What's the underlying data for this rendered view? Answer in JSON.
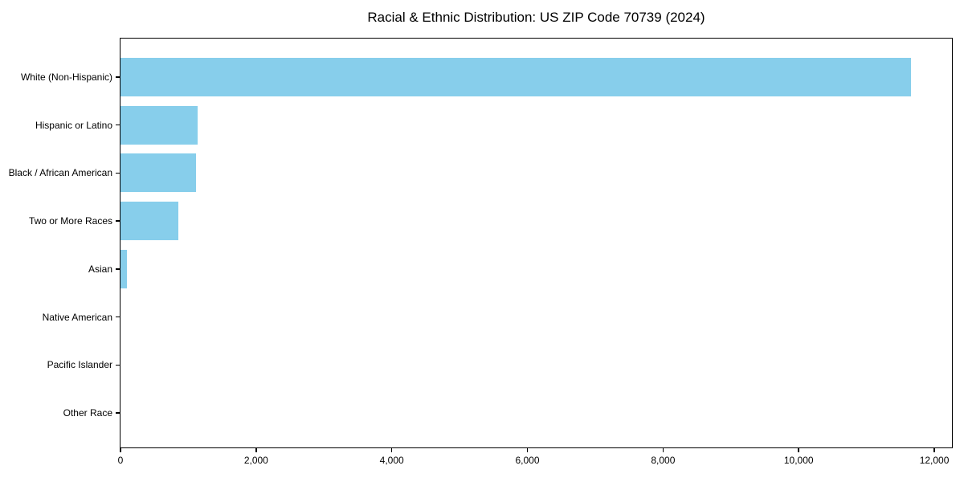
{
  "chart_data": {
    "type": "bar",
    "orientation": "horizontal",
    "title": "Racial & Ethnic Distribution: US ZIP Code 70739 (2024)",
    "categories": [
      "White (Non-Hispanic)",
      "Hispanic or Latino",
      "Black / African American",
      "Two or More Races",
      "Asian",
      "Native American",
      "Pacific Islander",
      "Other Race"
    ],
    "values": [
      11660,
      1140,
      1115,
      850,
      95,
      0,
      0,
      0
    ],
    "xlabel": "",
    "ylabel": "",
    "xlim": [
      0,
      12260
    ],
    "x_ticks": [
      0,
      2000,
      4000,
      6000,
      8000,
      10000,
      12000
    ],
    "x_tick_labels": [
      "0",
      "2,000",
      "4,000",
      "6,000",
      "8,000",
      "10,000",
      "12,000"
    ],
    "grid": false,
    "legend": "none",
    "bar_color": "#87CEEB"
  },
  "colors": {
    "bar": "#87CEEB",
    "axis": "#000000",
    "text": "#000000",
    "background": "#ffffff"
  }
}
